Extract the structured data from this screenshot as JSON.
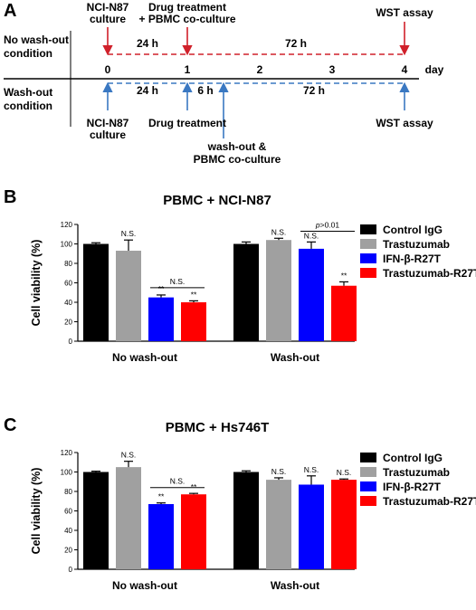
{
  "panels": {
    "a": "A",
    "b": "B",
    "c": "C"
  },
  "timeline": {
    "row_no_wash": [
      "No wash-out",
      "condition"
    ],
    "row_wash": [
      "Wash-out",
      "condition"
    ],
    "ticks": [
      "0",
      "1",
      "2",
      "3",
      "4"
    ],
    "unit": "day",
    "top_events": {
      "culture": [
        "NCI-N87",
        "culture"
      ],
      "drug": [
        "Drug treatment",
        "+ PBMC co-culture"
      ],
      "wst": "WST assay"
    },
    "bottom_events": {
      "culture": [
        "NCI-N87",
        "culture"
      ],
      "drug": "Drug treatment",
      "washout": [
        "wash-out &",
        "PBMC co-culture"
      ],
      "wst": "WST assay"
    },
    "durations_top": [
      "24 h",
      "72 h"
    ],
    "durations_bottom": [
      "24 h",
      "6 h",
      "72 h"
    ],
    "colors": {
      "no_wash": "#d0202a",
      "wash": "#3a78c2"
    }
  },
  "chart_data": [
    {
      "type": "bar",
      "title": "PBMC + NCI-N87",
      "ylabel": "Cell viability (%)",
      "ylim": [
        0,
        120
      ],
      "yticks": [
        "0",
        "20",
        "40",
        "60",
        "80",
        "100",
        "120"
      ],
      "categories": [
        "No wash-out",
        "Wash-out"
      ],
      "series": [
        {
          "name": "Control IgG",
          "color": "#000000",
          "values": [
            100,
            100
          ],
          "errors": [
            1.2,
            2.0
          ]
        },
        {
          "name": "Trastuzumab",
          "color": "#a0a0a0",
          "values": [
            93,
            104
          ],
          "errors": [
            11,
            1.8
          ]
        },
        {
          "name": "IFN-β-R27T",
          "color": "#0000ff",
          "values": [
            45,
            95
          ],
          "errors": [
            2.5,
            7
          ]
        },
        {
          "name": "Trastuzumab-R27T",
          "color": "#ff0000",
          "values": [
            40,
            57
          ],
          "errors": [
            1.5,
            4
          ]
        }
      ],
      "bar_labels": [
        {
          "group": 0,
          "series": 1,
          "text": "N.S."
        },
        {
          "group": 0,
          "series": 2,
          "text": "**"
        },
        {
          "group": 0,
          "series": 3,
          "text": "**"
        },
        {
          "group": 1,
          "series": 1,
          "text": "N.S."
        },
        {
          "group": 1,
          "series": 2,
          "text": "N.S."
        },
        {
          "group": 1,
          "series": 3,
          "text": "**"
        }
      ],
      "brackets": [
        {
          "group": 0,
          "from": 2,
          "to": 3,
          "text": "N.S.",
          "y": 55
        },
        {
          "group": 1,
          "from": 2,
          "to": 3,
          "text_italic": "p",
          "text": ">0.01",
          "y": 113
        }
      ]
    },
    {
      "type": "bar",
      "title": "PBMC + Hs746T",
      "ylabel": "Cell viability (%)",
      "ylim": [
        0,
        120
      ],
      "yticks": [
        "0",
        "20",
        "40",
        "60",
        "80",
        "100",
        "120"
      ],
      "categories": [
        "No wash-out",
        "Wash-out"
      ],
      "series": [
        {
          "name": "Control IgG",
          "color": "#000000",
          "values": [
            100,
            100
          ],
          "errors": [
            0.8,
            1.2
          ]
        },
        {
          "name": "Trastuzumab",
          "color": "#a0a0a0",
          "values": [
            105,
            92
          ],
          "errors": [
            6,
            2
          ]
        },
        {
          "name": "IFN-β-R27T",
          "color": "#0000ff",
          "values": [
            67,
            87
          ],
          "errors": [
            1.2,
            9
          ]
        },
        {
          "name": "Trastuzumab-R27T",
          "color": "#ff0000",
          "values": [
            77,
            92
          ],
          "errors": [
            1.0,
            0.8
          ]
        }
      ],
      "bar_labels": [
        {
          "group": 0,
          "series": 1,
          "text": "N.S."
        },
        {
          "group": 0,
          "series": 2,
          "text": "**"
        },
        {
          "group": 0,
          "series": 3,
          "text": "**"
        },
        {
          "group": 1,
          "series": 1,
          "text": "N.S."
        },
        {
          "group": 1,
          "series": 2,
          "text": "N.S."
        },
        {
          "group": 1,
          "series": 3,
          "text": "N.S."
        }
      ],
      "brackets": [
        {
          "group": 0,
          "from": 2,
          "to": 3,
          "text": "N.S.",
          "y": 84
        }
      ]
    }
  ]
}
